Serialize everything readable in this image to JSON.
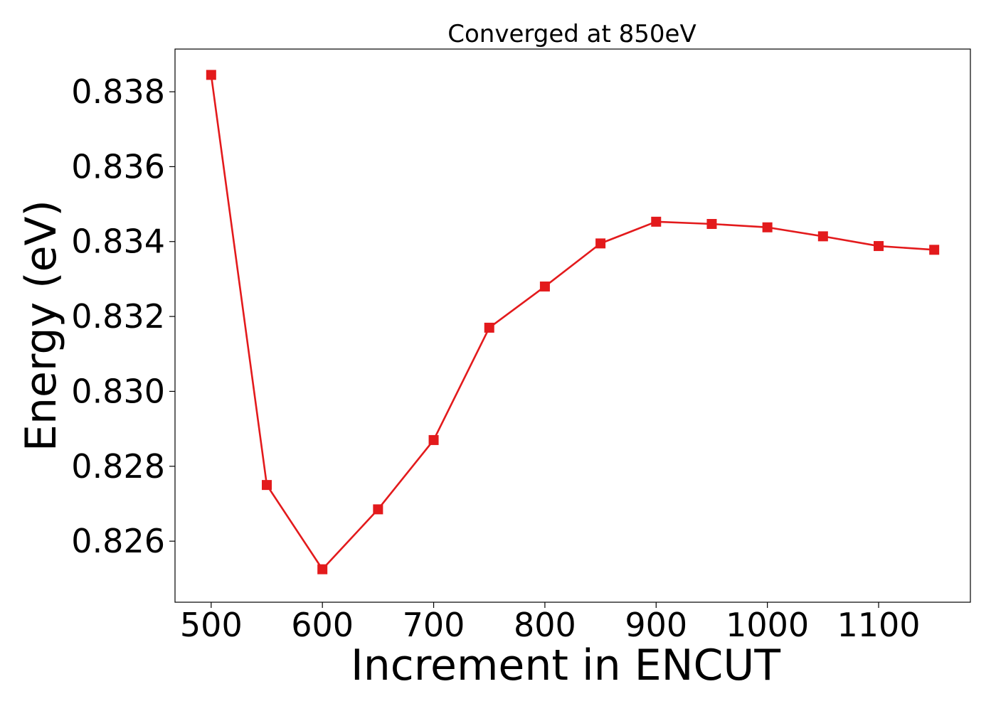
{
  "chart_data": {
    "type": "line",
    "title": "Converged at 850eV",
    "xlabel": "Increment in ENCUT",
    "ylabel": "Energy (eV)",
    "xlim": [
      467.5,
      1182.5
    ],
    "ylim": [
      0.82437,
      0.83914
    ],
    "xticks": [
      500,
      600,
      700,
      800,
      900,
      1000,
      1100
    ],
    "yticks": [
      0.826,
      0.828,
      0.83,
      0.832,
      0.834,
      0.836,
      0.838
    ],
    "ytick_format": "0.000",
    "grid": false,
    "legend": "none",
    "series": [
      {
        "marker": "square",
        "color": "#e31a1c",
        "x": [
          500,
          550,
          600,
          650,
          700,
          750,
          800,
          850,
          900,
          950,
          1000,
          1050,
          1100,
          1150
        ],
        "y": [
          0.83845,
          0.8275,
          0.82525,
          0.82685,
          0.8287,
          0.8317,
          0.8328,
          0.83395,
          0.83453,
          0.83447,
          0.83438,
          0.83414,
          0.83388,
          0.83378
        ]
      }
    ]
  }
}
